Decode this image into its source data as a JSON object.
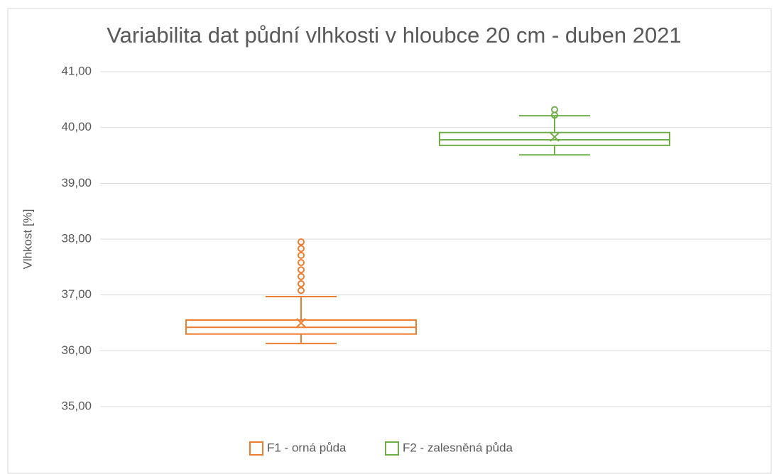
{
  "chart_data": {
    "type": "box",
    "title": "Variabilita dat půdní vlhkosti v hloubce 20 cm - duben 2021",
    "y_label": "Vlhkost [%]",
    "ylim": [
      35,
      41
    ],
    "yticks": [
      {
        "value": 35,
        "label": "35,00"
      },
      {
        "value": 36,
        "label": "36,00"
      },
      {
        "value": 37,
        "label": "37,00"
      },
      {
        "value": 38,
        "label": "38,00"
      },
      {
        "value": 39,
        "label": "39,00"
      },
      {
        "value": 40,
        "label": "40,00"
      },
      {
        "value": 41,
        "label": "41,00"
      }
    ],
    "grid": true,
    "legend": "bottom",
    "series": [
      {
        "name": "F1 - orná půda",
        "color": "#ed7d31",
        "min": 36.13,
        "q1": 36.3,
        "median": 36.42,
        "q3": 36.55,
        "max": 36.97,
        "mean": 36.5,
        "outliers": [
          37.08,
          37.2,
          37.33,
          37.45,
          37.58,
          37.71,
          37.83,
          37.95
        ]
      },
      {
        "name": "F2 - zalesněná půda",
        "color": "#70ad47",
        "min": 39.51,
        "q1": 39.68,
        "median": 39.78,
        "q3": 39.91,
        "max": 40.21,
        "mean": 39.83,
        "outliers": [
          40.22,
          40.32
        ]
      }
    ]
  }
}
